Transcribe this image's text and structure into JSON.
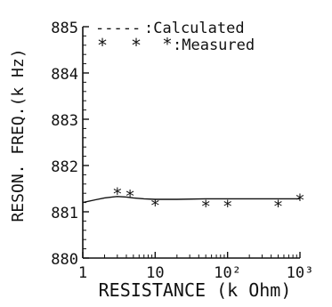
{
  "chart_data": {
    "type": "scatter",
    "xlabel": "RESISTANCE (k Ohm)",
    "ylabel": "RESON. FREQ.(k Hz)",
    "x_scale": "log",
    "xlim": [
      1,
      1000
    ],
    "ylim": [
      880,
      885
    ],
    "x_ticks": [
      {
        "value": 1,
        "label": "1"
      },
      {
        "value": 10,
        "label": "10"
      },
      {
        "value": 100,
        "label": "10²"
      },
      {
        "value": 1000,
        "label": "10³"
      }
    ],
    "y_ticks": [
      {
        "value": 880,
        "label": "880"
      },
      {
        "value": 881,
        "label": "881"
      },
      {
        "value": 882,
        "label": "882"
      },
      {
        "value": 883,
        "label": "883"
      },
      {
        "value": 884,
        "label": "884"
      },
      {
        "value": 885,
        "label": "885"
      }
    ],
    "legend": {
      "placement": "top",
      "entries": [
        {
          "symbol": "-----",
          "label": ":Calculated"
        },
        {
          "symbol": "*",
          "label": ":Measured"
        }
      ]
    },
    "series": [
      {
        "kind": "line",
        "style": "solid",
        "x": [
          1,
          1.5,
          2,
          3,
          4,
          5,
          7,
          10,
          20,
          50,
          100,
          200,
          500,
          1000
        ],
        "y": [
          881.2,
          881.26,
          881.3,
          881.33,
          881.32,
          881.3,
          881.28,
          881.27,
          881.27,
          881.28,
          881.28,
          881.28,
          881.28,
          881.28
        ]
      },
      {
        "kind": "points",
        "marker": "*",
        "x": [
          3,
          4.5,
          10,
          50,
          100,
          500,
          1000
        ],
        "y": [
          881.43,
          881.38,
          881.18,
          881.16,
          881.16,
          881.16,
          881.3
        ]
      }
    ],
    "grid": false
  }
}
